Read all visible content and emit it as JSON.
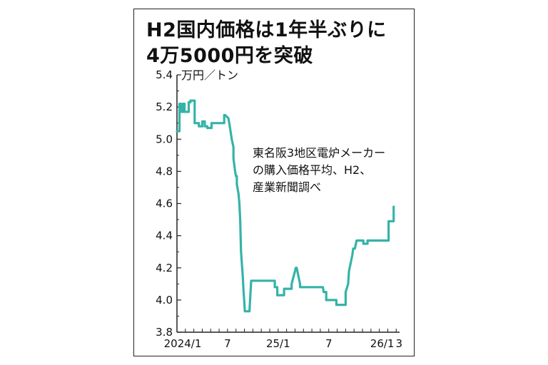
{
  "chart_data": {
    "type": "line",
    "title": "H2国内価格は1年半ぶりに",
    "subtitle": "4万5000円を突破",
    "ylabel": "万円／トン",
    "annotation": [
      "東名阪3地区電炉メーカー",
      "の購入価格平均、H2、",
      "産業新聞調べ"
    ],
    "ylim": [
      3.8,
      5.4
    ],
    "yticks": [
      "5.4",
      "5.2",
      "5.0",
      "4.8",
      "4.6",
      "4.4",
      "4.2",
      "4.0",
      "3.8"
    ],
    "xticks": [
      {
        "label": "2024/1",
        "t": 0
      },
      {
        "label": "7",
        "t": 6
      },
      {
        "label": "25/1",
        "t": 12
      },
      {
        "label": "7",
        "t": 18
      },
      {
        "label": "26/1",
        "t": 24
      },
      {
        "label": "3",
        "t": 26
      }
    ],
    "line_color": "#35b3a9",
    "series": [
      {
        "x": [
          0,
          0.3,
          0.3,
          0.5,
          0.5,
          0.7,
          0.7,
          0.9,
          0.9,
          1.4,
          1.4,
          1.6,
          1.6,
          2.1,
          2.1,
          2.6,
          2.6,
          3.0,
          3.0,
          3.3,
          3.3,
          3.6,
          3.6,
          4.1,
          4.1,
          5.6,
          5.6,
          5.7,
          5.7,
          6.1,
          6.2,
          6.5,
          6.7,
          6.7,
          6.9,
          7.0,
          7.1,
          7.1,
          7.3,
          7.4,
          7.5,
          7.6,
          7.8,
          7.9,
          8.0,
          8.05,
          8.1,
          8.6,
          8.8,
          9.0,
          11.6,
          11.6,
          11.9,
          11.9,
          12.7,
          12.7,
          13.6,
          13.6,
          14.1,
          14.2,
          14.6,
          14.6,
          17.3,
          17.4,
          17.7,
          17.7,
          18.9,
          18.9,
          20.0,
          20.0,
          20.3,
          20.4,
          20.8,
          20.9,
          21.1,
          21.3,
          22.1,
          22.1,
          22.6,
          22.6,
          25.1,
          25.1,
          25.7,
          25.7
        ],
        "y": [
          5.05,
          5.05,
          5.22,
          5.22,
          5.17,
          5.17,
          5.22,
          5.22,
          5.17,
          5.17,
          5.23,
          5.23,
          5.24,
          5.24,
          5.1,
          5.1,
          5.08,
          5.08,
          5.11,
          5.11,
          5.08,
          5.08,
          5.07,
          5.07,
          5.1,
          5.1,
          5.15,
          5.15,
          5.15,
          5.13,
          5.1,
          5.0,
          4.95,
          4.88,
          4.8,
          4.77,
          4.77,
          4.72,
          4.66,
          4.6,
          4.5,
          4.3,
          4.15,
          4.05,
          3.98,
          3.93,
          3.93,
          3.93,
          4.12,
          4.12,
          4.12,
          4.08,
          4.08,
          4.03,
          4.03,
          4.07,
          4.07,
          4.1,
          4.2,
          4.2,
          4.1,
          4.08,
          4.08,
          4.05,
          4.05,
          4.0,
          4.0,
          3.97,
          3.97,
          4.05,
          4.1,
          4.18,
          4.28,
          4.32,
          4.32,
          4.37,
          4.37,
          4.35,
          4.35,
          4.37,
          4.37,
          4.49,
          4.49,
          4.58
        ]
      }
    ]
  }
}
